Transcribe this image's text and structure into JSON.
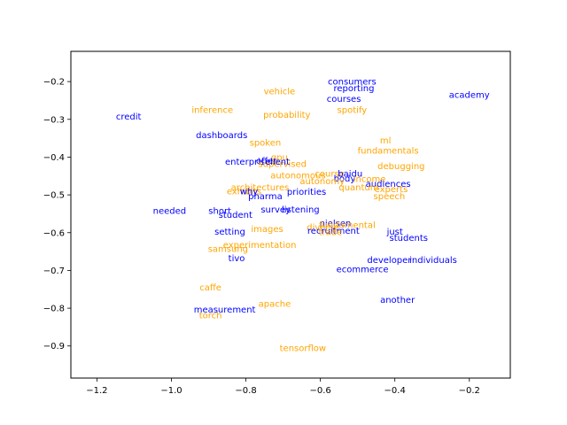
{
  "chart_data": {
    "type": "scatter",
    "title": "",
    "xlabel": "",
    "ylabel": "",
    "xlim": [
      -1.27,
      -0.09
    ],
    "ylim": [
      -0.985,
      -0.12
    ],
    "x_ticks": [
      -1.2,
      -1.0,
      -0.8,
      -0.6,
      -0.4,
      -0.2
    ],
    "y_ticks": [
      -0.9,
      -0.8,
      -0.7,
      -0.6,
      -0.5,
      -0.4,
      -0.3,
      -0.2
    ],
    "x_tick_labels": [
      "−1.2",
      "−1.0",
      "−0.8",
      "−0.6",
      "−0.4",
      "−0.2"
    ],
    "y_tick_labels": [
      "−0.9",
      "−0.8",
      "−0.7",
      "−0.6",
      "−0.5",
      "−0.4",
      "−0.3",
      "−0.2"
    ],
    "grid": false,
    "colors": {
      "blue": "#0000ff",
      "orange": "#ffa500"
    },
    "points": [
      {
        "text": "consumers",
        "x": -0.515,
        "y": -0.2,
        "color": "blue"
      },
      {
        "text": "reporting",
        "x": -0.51,
        "y": -0.217,
        "color": "blue"
      },
      {
        "text": "academy",
        "x": -0.2,
        "y": -0.235,
        "color": "blue"
      },
      {
        "text": "vehicle",
        "x": -0.71,
        "y": -0.226,
        "color": "orange"
      },
      {
        "text": "courses",
        "x": -0.537,
        "y": -0.245,
        "color": "blue"
      },
      {
        "text": "inference",
        "x": -0.89,
        "y": -0.275,
        "color": "orange"
      },
      {
        "text": "spotify",
        "x": -0.515,
        "y": -0.275,
        "color": "orange"
      },
      {
        "text": "credit",
        "x": -1.115,
        "y": -0.292,
        "color": "blue"
      },
      {
        "text": "probability",
        "x": -0.69,
        "y": -0.288,
        "color": "orange"
      },
      {
        "text": "dashboards",
        "x": -0.865,
        "y": -0.342,
        "color": "blue"
      },
      {
        "text": "ml",
        "x": -0.425,
        "y": -0.356,
        "color": "orange"
      },
      {
        "text": "spoken",
        "x": -0.748,
        "y": -0.362,
        "color": "orange"
      },
      {
        "text": "fundamentals",
        "x": -0.418,
        "y": -0.383,
        "color": "orange"
      },
      {
        "text": "gpu",
        "x": -0.71,
        "y": -0.4,
        "color": "orange"
      },
      {
        "text": "enterprise",
        "x": -0.795,
        "y": -0.412,
        "color": "blue"
      },
      {
        "text": "offer",
        "x": -0.745,
        "y": -0.41,
        "color": "blue"
      },
      {
        "text": "supervised",
        "x": -0.702,
        "y": -0.418,
        "color": "orange"
      },
      {
        "text": "client",
        "x": -0.715,
        "y": -0.412,
        "color": "blue"
      },
      {
        "text": "debugging",
        "x": -0.383,
        "y": -0.423,
        "color": "orange"
      },
      {
        "text": "autonomous",
        "x": -0.66,
        "y": -0.448,
        "color": "orange"
      },
      {
        "text": "course",
        "x": -0.575,
        "y": -0.443,
        "color": "orange"
      },
      {
        "text": "baidu",
        "x": -0.52,
        "y": -0.443,
        "color": "blue"
      },
      {
        "text": "body",
        "x": -0.535,
        "y": -0.456,
        "color": "blue"
      },
      {
        "text": "autonomy",
        "x": -0.595,
        "y": -0.463,
        "color": "orange"
      },
      {
        "text": "income",
        "x": -0.468,
        "y": -0.458,
        "color": "orange"
      },
      {
        "text": "audiences",
        "x": -0.418,
        "y": -0.47,
        "color": "blue"
      },
      {
        "text": "architectures",
        "x": -0.762,
        "y": -0.48,
        "color": "orange"
      },
      {
        "text": "quantum",
        "x": -0.497,
        "y": -0.48,
        "color": "orange"
      },
      {
        "text": "experts",
        "x": -0.41,
        "y": -0.485,
        "color": "orange"
      },
      {
        "text": "exhibits",
        "x": -0.805,
        "y": -0.49,
        "color": "orange"
      },
      {
        "text": "why",
        "x": -0.792,
        "y": -0.49,
        "color": "blue"
      },
      {
        "text": "priorities",
        "x": -0.637,
        "y": -0.492,
        "color": "blue"
      },
      {
        "text": "pharma",
        "x": -0.748,
        "y": -0.503,
        "color": "blue"
      },
      {
        "text": "speech",
        "x": -0.415,
        "y": -0.503,
        "color": "orange"
      },
      {
        "text": "needed",
        "x": -1.005,
        "y": -0.542,
        "color": "blue"
      },
      {
        "text": "short",
        "x": -0.87,
        "y": -0.542,
        "color": "blue"
      },
      {
        "text": "survey",
        "x": -0.72,
        "y": -0.538,
        "color": "blue"
      },
      {
        "text": "listening",
        "x": -0.653,
        "y": -0.538,
        "color": "blue"
      },
      {
        "text": "student",
        "x": -0.828,
        "y": -0.552,
        "color": "blue"
      },
      {
        "text": "nielsen",
        "x": -0.56,
        "y": -0.575,
        "color": "blue"
      },
      {
        "text": "fundamental",
        "x": -0.528,
        "y": -0.58,
        "color": "orange"
      },
      {
        "text": "diverse",
        "x": -0.593,
        "y": -0.585,
        "color": "orange"
      },
      {
        "text": "images",
        "x": -0.743,
        "y": -0.59,
        "color": "orange"
      },
      {
        "text": "recruitment",
        "x": -0.565,
        "y": -0.595,
        "color": "blue"
      },
      {
        "text": "trade",
        "x": -0.573,
        "y": -0.598,
        "color": "orange"
      },
      {
        "text": "setting",
        "x": -0.843,
        "y": -0.597,
        "color": "blue"
      },
      {
        "text": "just",
        "x": -0.4,
        "y": -0.597,
        "color": "blue"
      },
      {
        "text": "students",
        "x": -0.363,
        "y": -0.613,
        "color": "blue"
      },
      {
        "text": "experimentation",
        "x": -0.763,
        "y": -0.632,
        "color": "orange"
      },
      {
        "text": "samsung",
        "x": -0.848,
        "y": -0.643,
        "color": "orange"
      },
      {
        "text": "tivo",
        "x": -0.825,
        "y": -0.667,
        "color": "blue"
      },
      {
        "text": "developer",
        "x": -0.415,
        "y": -0.672,
        "color": "blue"
      },
      {
        "text": "individuals",
        "x": -0.297,
        "y": -0.672,
        "color": "blue"
      },
      {
        "text": "ecommerce",
        "x": -0.487,
        "y": -0.697,
        "color": "blue"
      },
      {
        "text": "caffe",
        "x": -0.895,
        "y": -0.745,
        "color": "orange"
      },
      {
        "text": "apache",
        "x": -0.723,
        "y": -0.788,
        "color": "orange"
      },
      {
        "text": "another",
        "x": -0.393,
        "y": -0.778,
        "color": "blue"
      },
      {
        "text": "measurement",
        "x": -0.857,
        "y": -0.803,
        "color": "blue"
      },
      {
        "text": "torch",
        "x": -0.895,
        "y": -0.818,
        "color": "orange"
      },
      {
        "text": "tensorflow",
        "x": -0.647,
        "y": -0.905,
        "color": "orange"
      }
    ]
  }
}
